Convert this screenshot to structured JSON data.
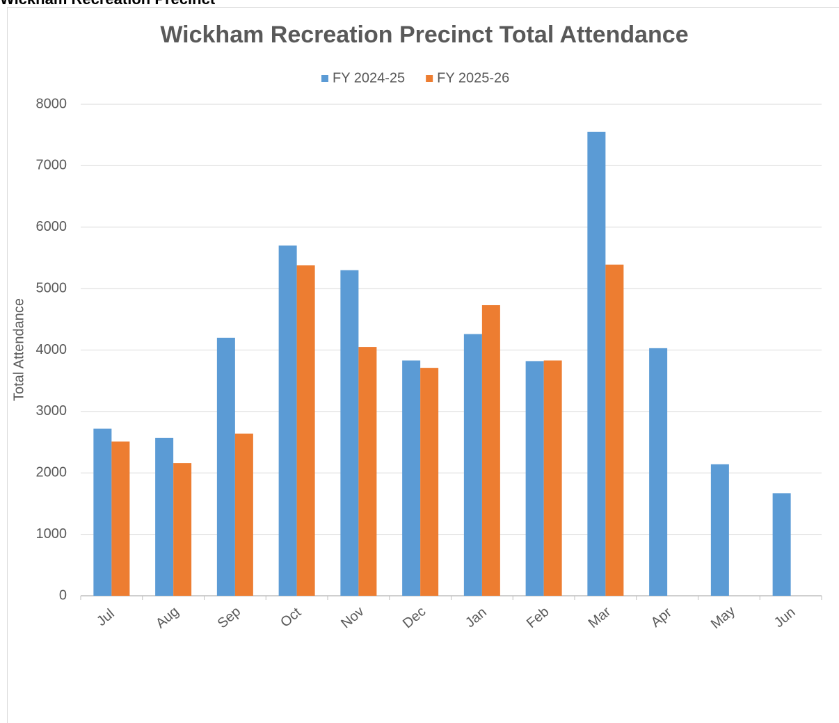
{
  "heading": "Wickham Recreation Precinct",
  "chart_data": {
    "type": "bar",
    "title": "Wickham Recreation Precinct Total Attendance",
    "y_label": "Total Attendance",
    "categories": [
      "Jul",
      "Aug",
      "Sep",
      "Oct",
      "Nov",
      "Dec",
      "Jan",
      "Feb",
      "Mar",
      "Apr",
      "May",
      "Jun"
    ],
    "series": [
      {
        "name": "FY 2024-25",
        "color": "#5b9bd5",
        "values": [
          2720,
          2570,
          4200,
          5700,
          5300,
          3830,
          4260,
          3820,
          7550,
          4030,
          2140,
          1670
        ]
      },
      {
        "name": "FY 2025-26",
        "color": "#ed7d31",
        "values": [
          2510,
          2160,
          2640,
          5380,
          4050,
          3710,
          4730,
          3830,
          5390,
          null,
          null,
          null
        ]
      }
    ],
    "ylim": [
      0,
      8000
    ],
    "yticks": [
      0,
      1000,
      2000,
      3000,
      4000,
      5000,
      6000,
      7000,
      8000
    ],
    "grid": true,
    "legend": "top"
  }
}
